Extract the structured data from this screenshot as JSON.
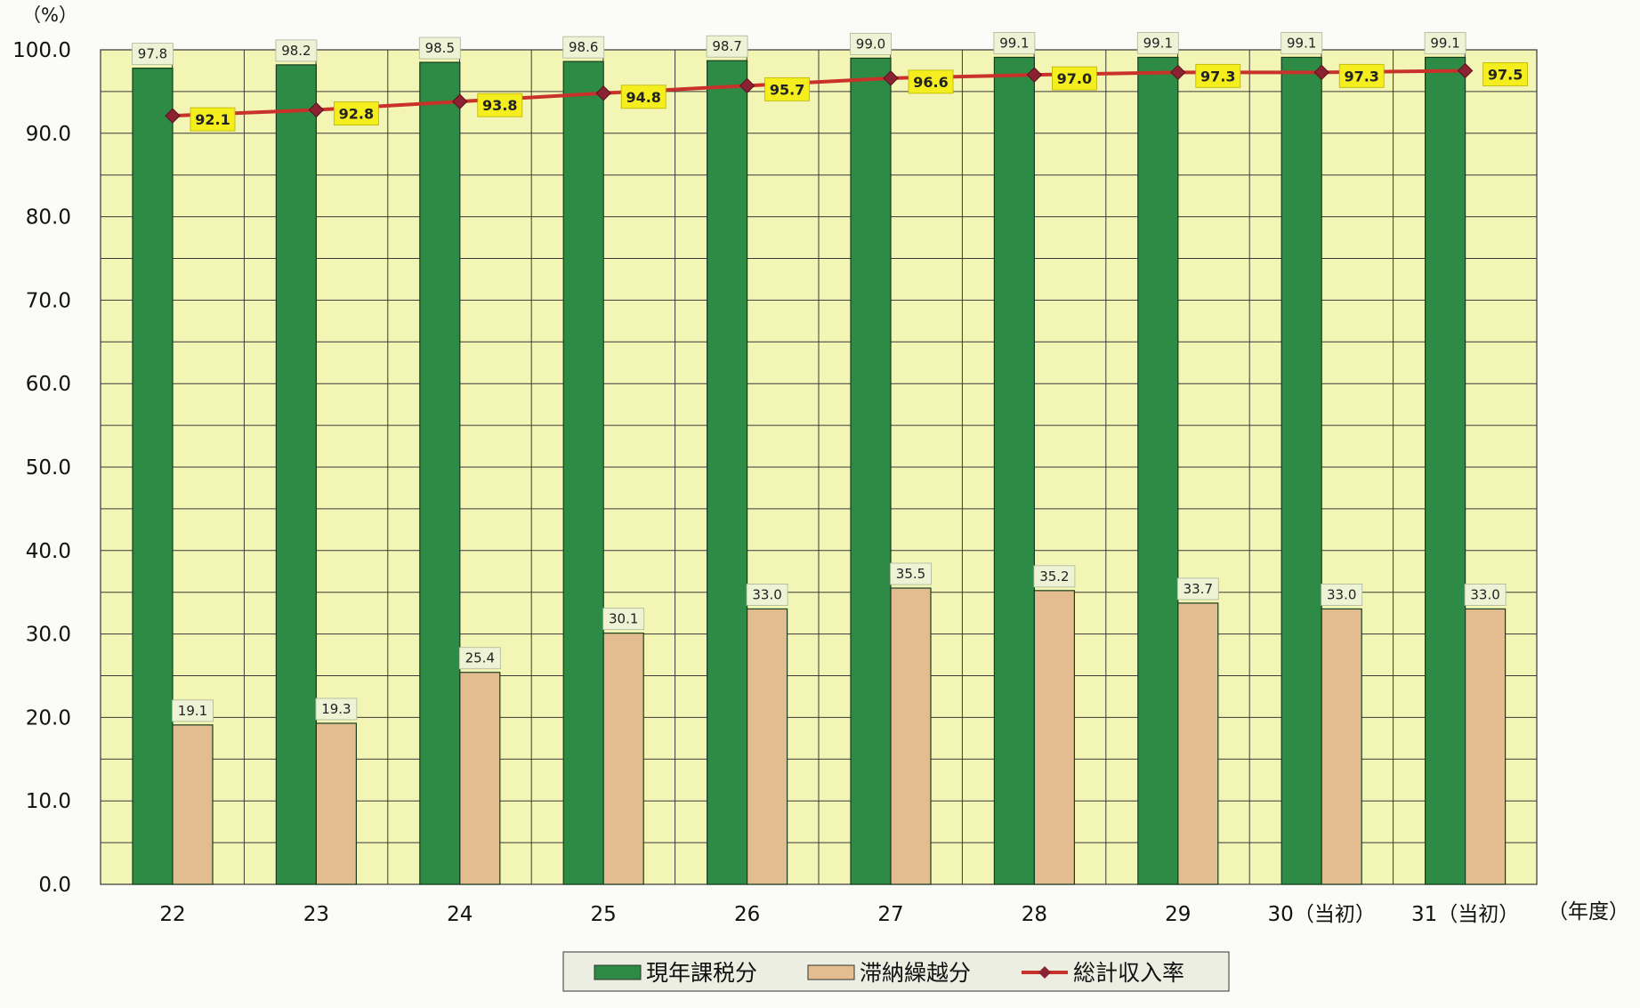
{
  "chart_data": {
    "type": "bar",
    "title": "",
    "ylabel": "（%）",
    "xlabel": "（年度）",
    "ylim": [
      0,
      100
    ],
    "yticks": [
      "0.0",
      "10.0",
      "20.0",
      "30.0",
      "40.0",
      "50.0",
      "60.0",
      "70.0",
      "80.0",
      "90.0",
      "100.0"
    ],
    "categories": [
      "22",
      "23",
      "24",
      "25",
      "26",
      "27",
      "28",
      "29",
      "30（当初）",
      "31（当初）"
    ],
    "series": [
      {
        "name": "現年課税分",
        "kind": "bar",
        "color": "#2e8b45",
        "values": [
          97.8,
          98.2,
          98.5,
          98.6,
          98.7,
          99.0,
          99.1,
          99.1,
          99.1,
          99.1
        ],
        "labels": [
          "97.8",
          "98.2",
          "98.5",
          "98.6",
          "98.7",
          "99.0",
          "99.1",
          "99.1",
          "99.1",
          "99.1"
        ]
      },
      {
        "name": "滞納繰越分",
        "kind": "bar",
        "color": "#e3bd8f",
        "values": [
          19.1,
          19.3,
          25.4,
          30.1,
          33.0,
          35.5,
          35.2,
          33.7,
          33.0,
          33.0
        ],
        "labels": [
          "19.1",
          "19.3",
          "25.4",
          "30.1",
          "33.0",
          "35.5",
          "35.2",
          "33.7",
          "33.0",
          "33.0"
        ]
      },
      {
        "name": "総計収入率",
        "kind": "line",
        "color": "#c8322b",
        "values": [
          92.1,
          92.8,
          93.8,
          94.8,
          95.7,
          96.6,
          97.0,
          97.3,
          97.3,
          97.5
        ],
        "labels": [
          "92.1",
          "92.8",
          "93.8",
          "94.8",
          "95.7",
          "96.6",
          "97.0",
          "97.3",
          "97.3",
          "97.5"
        ]
      }
    ],
    "grid": true,
    "legend": "bottom-center",
    "colors": {
      "plot_background": "#f3f5b4",
      "grid": "#3a3a3a",
      "bar_label_background": "#eef3d6",
      "line_label_background": "#f5ee1e",
      "line_marker": "#8b2232"
    }
  }
}
